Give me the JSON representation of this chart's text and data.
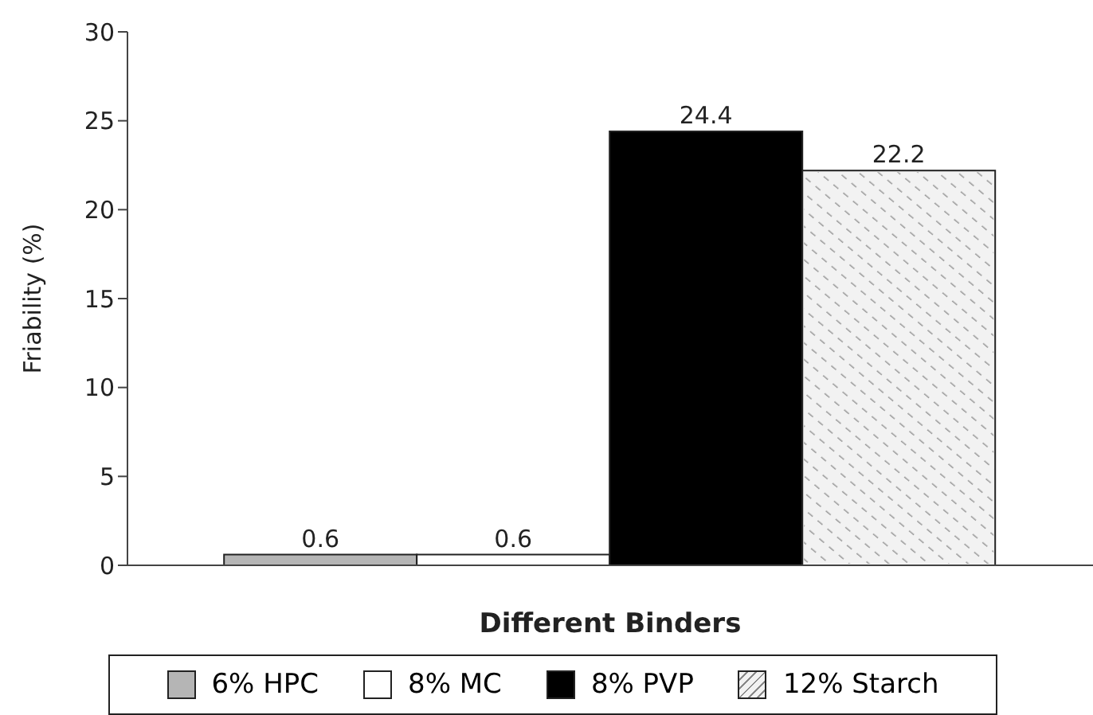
{
  "chart_data": {
    "type": "bar",
    "xlabel": "Different Binders",
    "ylabel": "Friability (%)",
    "categories": [
      null
    ],
    "series": [
      {
        "name": "6% HPC",
        "color": "#b5b5b5",
        "values": [
          0.6
        ]
      },
      {
        "name": "8% MC",
        "color": "#ffffff",
        "values": [
          0.6
        ]
      },
      {
        "name": "8% PVP",
        "color": "#000000",
        "values": [
          24.4
        ]
      },
      {
        "name": "12% Starch",
        "color": "#f2f2f2",
        "values": [
          22.2
        ]
      }
    ],
    "ylim": [
      0,
      30
    ],
    "yticks": [
      0,
      5,
      10,
      15,
      20,
      25,
      30
    ],
    "data_labels": true,
    "legend": "bottom",
    "grid": false
  }
}
